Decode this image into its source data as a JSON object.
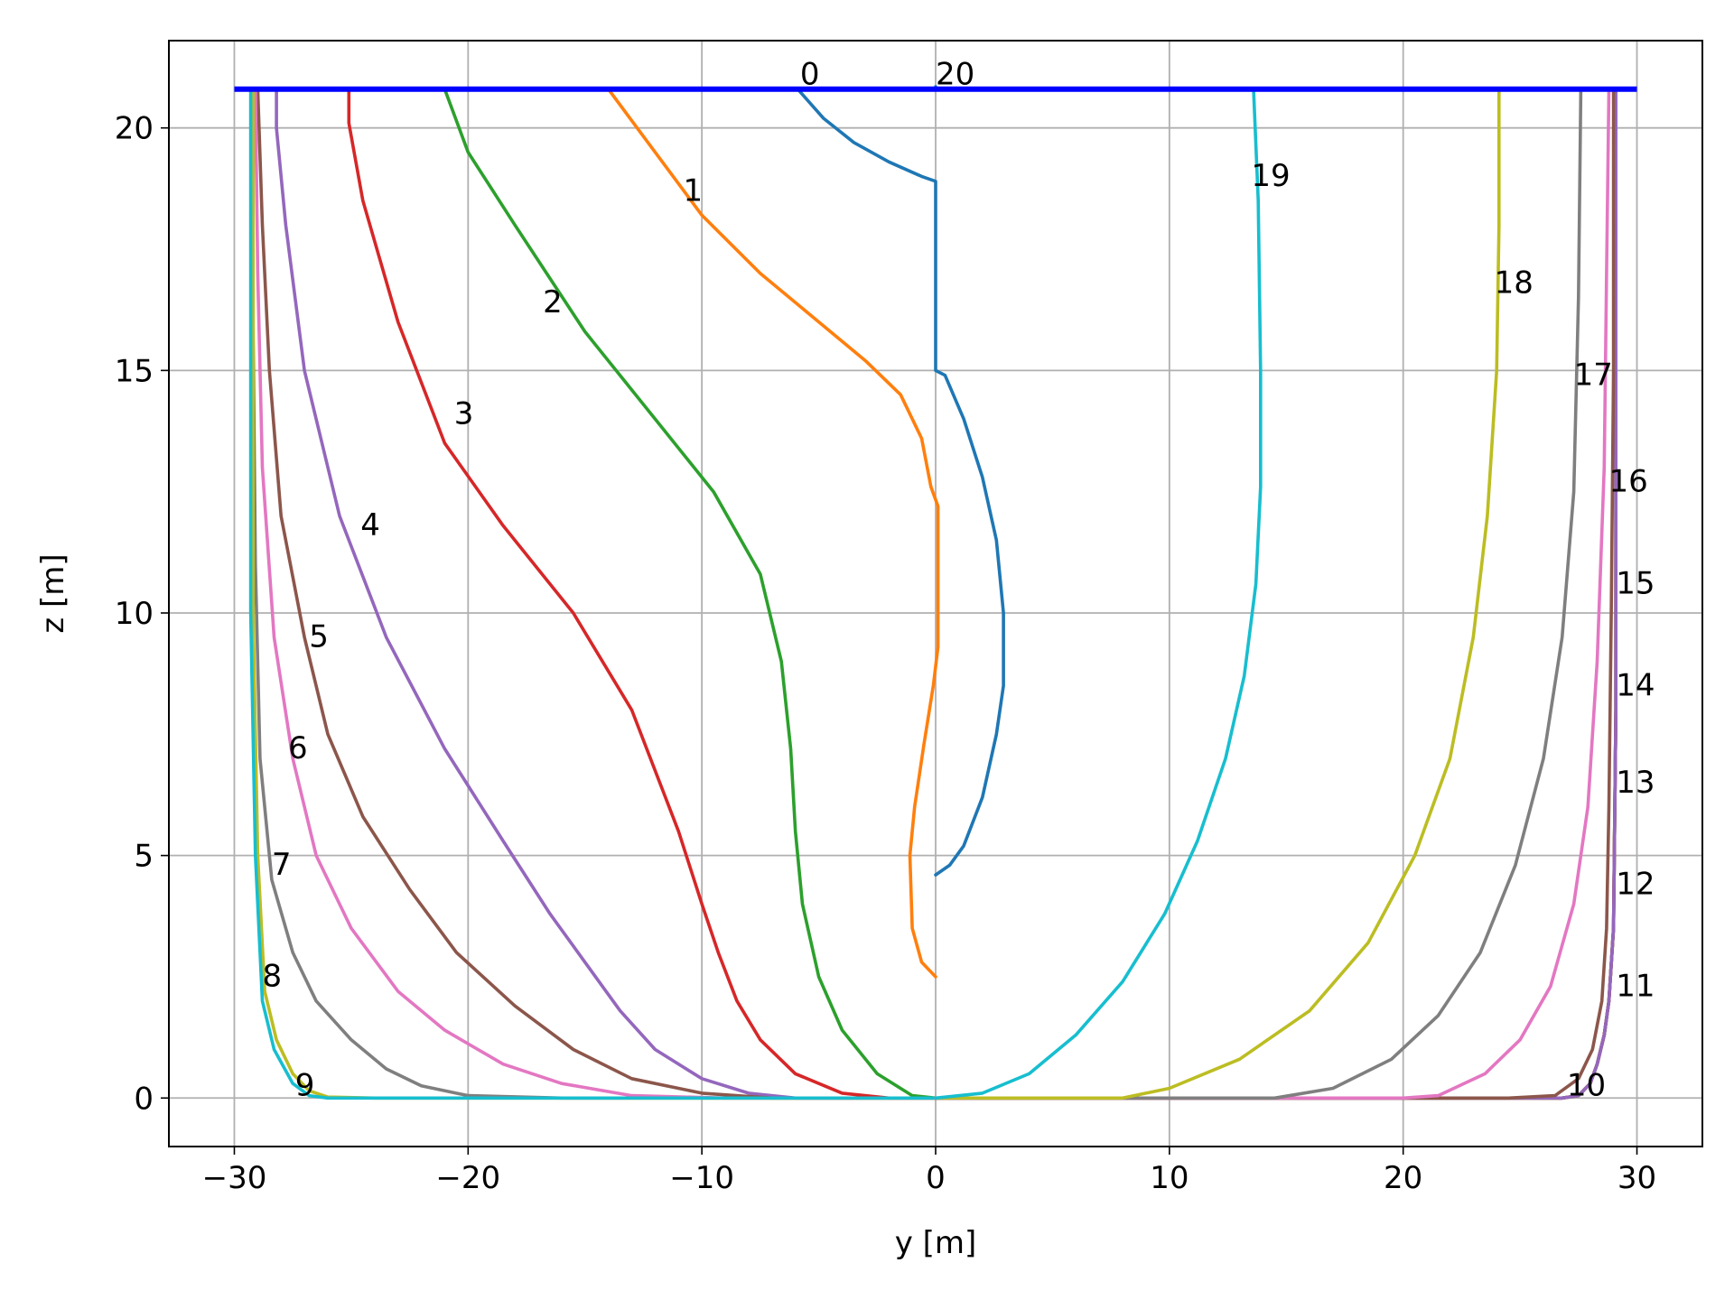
{
  "chart_data": {
    "type": "line",
    "title": "",
    "xlabel": "y [m]",
    "ylabel": "z [m]",
    "xlim": [
      -32.8,
      32.8
    ],
    "ylim": [
      -1.0,
      21.8
    ],
    "xticks": [
      -30,
      -20,
      -10,
      0,
      10,
      20,
      30
    ],
    "xtick_labels": [
      "−30",
      "−20",
      "−10",
      "0",
      "10",
      "20",
      "30"
    ],
    "yticks": [
      0,
      5,
      10,
      15,
      20
    ],
    "ytick_labels": [
      "0",
      "5",
      "10",
      "15",
      "20"
    ],
    "grid": true,
    "legend": "none",
    "surface": {
      "x": [
        -30,
        30
      ],
      "y": [
        20.8,
        20.8
      ],
      "color": "#0000ff"
    },
    "series": [
      {
        "label": "0",
        "color": "#1f77b4",
        "label_pos": [
          -5.8,
          20.9
        ],
        "x": [
          -5.9,
          -4.8,
          -3.5,
          -2.0,
          -0.6,
          0.0,
          0.0,
          0.0,
          0.4,
          1.2,
          2.0,
          2.6,
          2.9,
          2.9,
          2.6,
          2.0,
          1.2,
          0.6,
          0.0
        ],
        "y": [
          20.8,
          20.2,
          19.7,
          19.3,
          19.0,
          18.9,
          17.0,
          15.0,
          14.9,
          14.0,
          12.8,
          11.5,
          10.0,
          8.5,
          7.5,
          6.2,
          5.2,
          4.8,
          4.6
        ]
      },
      {
        "label": "1",
        "color": "#ff7f0e",
        "label_pos": [
          -10.8,
          18.5
        ],
        "x": [
          -14.0,
          -12.0,
          -10.0,
          -7.5,
          -5.0,
          -3.0,
          -1.5,
          -0.6,
          -0.2,
          0.1,
          0.1,
          0.1,
          -0.1,
          -0.5,
          -0.9,
          -1.1,
          -1.0,
          -0.6,
          0.0
        ],
        "y": [
          20.8,
          19.5,
          18.2,
          17.0,
          16.0,
          15.2,
          14.5,
          13.6,
          12.6,
          12.2,
          10.5,
          9.3,
          8.5,
          7.3,
          6.0,
          5.0,
          3.5,
          2.8,
          2.5
        ]
      },
      {
        "label": "2",
        "color": "#2ca02c",
        "label_pos": [
          -16.8,
          16.2
        ],
        "x": [
          -21.0,
          -20.0,
          -18.0,
          -15.0,
          -12.0,
          -9.5,
          -7.5,
          -6.6,
          -6.2,
          -6.0,
          -5.7,
          -5.0,
          -4.0,
          -2.5,
          -1.0,
          0.0
        ],
        "y": [
          20.8,
          19.5,
          18.0,
          15.8,
          14.0,
          12.5,
          10.8,
          9.0,
          7.2,
          5.5,
          4.0,
          2.5,
          1.4,
          0.5,
          0.05,
          0.0
        ]
      },
      {
        "label": "3",
        "color": "#d62728",
        "label_pos": [
          -20.6,
          13.9
        ],
        "x": [
          -25.1,
          -25.1,
          -24.5,
          -23.0,
          -21.0,
          -18.5,
          -15.5,
          -13.0,
          -11.0,
          -10.0,
          -9.3,
          -8.5,
          -7.5,
          -6.0,
          -4.0,
          -2.0,
          0.0
        ],
        "y": [
          20.8,
          20.1,
          18.5,
          16.0,
          13.5,
          11.8,
          10.0,
          8.0,
          5.5,
          4.0,
          3.0,
          2.0,
          1.2,
          0.5,
          0.1,
          0.0,
          0.0
        ]
      },
      {
        "label": "4",
        "color": "#9467bd",
        "label_pos": [
          -24.6,
          11.6
        ],
        "x": [
          -28.2,
          -28.2,
          -27.8,
          -27.0,
          -25.5,
          -23.5,
          -21.0,
          -18.5,
          -16.5,
          -15.0,
          -13.5,
          -12.0,
          -10.0,
          -8.0,
          -6.0,
          -3.0,
          0.0
        ],
        "y": [
          20.8,
          20.0,
          18.0,
          15.0,
          12.0,
          9.5,
          7.2,
          5.3,
          3.8,
          2.8,
          1.8,
          1.0,
          0.4,
          0.1,
          0.0,
          0.0,
          0.0
        ]
      },
      {
        "label": "5",
        "color": "#8c564b",
        "label_pos": [
          -26.8,
          9.3
        ],
        "x": [
          -29.0,
          -28.8,
          -28.5,
          -28.0,
          -27.0,
          -26.0,
          -24.5,
          -22.5,
          -20.5,
          -18.0,
          -15.5,
          -13.0,
          -10.0,
          -7.0,
          -3.0,
          0.0
        ],
        "y": [
          20.8,
          18.0,
          15.0,
          12.0,
          9.5,
          7.5,
          5.8,
          4.3,
          3.0,
          1.9,
          1.0,
          0.4,
          0.1,
          0.0,
          0.0,
          0.0
        ]
      },
      {
        "label": "6",
        "color": "#e377c2",
        "label_pos": [
          -27.7,
          7.0
        ],
        "x": [
          -29.1,
          -29.0,
          -28.8,
          -28.3,
          -27.5,
          -26.5,
          -25.0,
          -23.0,
          -21.0,
          -18.5,
          -16.0,
          -13.0,
          -9.0,
          -5.0,
          0.0
        ],
        "y": [
          20.8,
          17.0,
          13.0,
          9.5,
          7.0,
          5.0,
          3.5,
          2.2,
          1.4,
          0.7,
          0.3,
          0.05,
          0.0,
          0.0,
          0.0
        ]
      },
      {
        "label": "7",
        "color": "#7f7f7f",
        "label_pos": [
          -28.4,
          4.6
        ],
        "x": [
          -29.2,
          -29.2,
          -29.1,
          -28.9,
          -28.4,
          -27.5,
          -26.5,
          -25.0,
          -23.5,
          -22.0,
          -20.0,
          -16.0,
          -10.0,
          0.0
        ],
        "y": [
          20.8,
          16.0,
          11.0,
          7.0,
          4.5,
          3.0,
          2.0,
          1.2,
          0.6,
          0.25,
          0.05,
          0.0,
          0.0,
          0.0
        ]
      },
      {
        "label": "8",
        "color": "#bcbd22",
        "label_pos": [
          -28.8,
          2.3
        ],
        "x": [
          -29.2,
          -29.2,
          -29.2,
          -29.0,
          -28.7,
          -28.2,
          -27.5,
          -26.8,
          -26.0,
          -24.0,
          -20.0,
          -10.0,
          0.0
        ],
        "y": [
          20.8,
          16.0,
          10.0,
          5.0,
          2.2,
          1.2,
          0.5,
          0.15,
          0.02,
          0.0,
          0.0,
          0.0,
          0.0
        ]
      },
      {
        "label": "9",
        "color": "#17becf",
        "label_pos": [
          -27.4,
          0.05
        ],
        "x": [
          -29.3,
          -29.3,
          -29.3,
          -29.1,
          -28.8,
          -28.3,
          -27.5,
          -26.8,
          -26.0,
          -20.0,
          -10.0,
          0.0
        ],
        "y": [
          20.8,
          16.0,
          10.0,
          5.0,
          2.0,
          1.0,
          0.3,
          0.05,
          0.0,
          0.0,
          0.0,
          0.0
        ]
      },
      {
        "label": "10",
        "color": "#1f77b4",
        "label_pos": [
          27.0,
          0.05
        ],
        "x": [
          0.0,
          10.0,
          20.0,
          26.8,
          27.5,
          28.0,
          28.3,
          28.6,
          28.8,
          29.0,
          29.1,
          29.1,
          29.1
        ],
        "y": [
          0.0,
          0.0,
          0.0,
          0.0,
          0.05,
          0.3,
          0.7,
          1.3,
          2.0,
          3.5,
          8.0,
          14.0,
          20.8
        ]
      },
      {
        "label": "11",
        "color": "#ff7f0e",
        "label_pos": [
          29.1,
          2.1
        ],
        "x": [
          0.0,
          10.0,
          20.0,
          26.8,
          27.5,
          28.0,
          28.3,
          28.6,
          28.8,
          29.0,
          29.1,
          29.1,
          29.1
        ],
        "y": [
          0.0,
          0.0,
          0.0,
          0.0,
          0.05,
          0.3,
          0.7,
          1.3,
          2.0,
          3.5,
          8.0,
          14.0,
          20.8
        ]
      },
      {
        "label": "12",
        "color": "#2ca02c",
        "label_pos": [
          29.1,
          4.2
        ],
        "x": [
          0.0,
          10.0,
          20.0,
          26.8,
          27.5,
          28.0,
          28.3,
          28.6,
          28.8,
          29.0,
          29.1,
          29.1,
          29.1
        ],
        "y": [
          0.0,
          0.0,
          0.0,
          0.0,
          0.05,
          0.3,
          0.7,
          1.3,
          2.0,
          3.5,
          8.0,
          14.0,
          20.8
        ]
      },
      {
        "label": "13",
        "color": "#d62728",
        "label_pos": [
          29.1,
          6.3
        ],
        "x": [
          0.0,
          10.0,
          20.0,
          26.8,
          27.5,
          28.0,
          28.3,
          28.6,
          28.8,
          29.0,
          29.1,
          29.1,
          29.1
        ],
        "y": [
          0.0,
          0.0,
          0.0,
          0.0,
          0.05,
          0.3,
          0.7,
          1.3,
          2.0,
          3.5,
          8.0,
          14.0,
          20.8
        ]
      },
      {
        "label": "14",
        "color": "#9467bd",
        "label_pos": [
          29.1,
          8.3
        ],
        "x": [
          0.0,
          10.0,
          20.0,
          26.8,
          27.5,
          28.0,
          28.3,
          28.6,
          28.8,
          29.0,
          29.1,
          29.1,
          29.1
        ],
        "y": [
          0.0,
          0.0,
          0.0,
          0.0,
          0.05,
          0.3,
          0.7,
          1.3,
          2.0,
          3.5,
          8.0,
          14.0,
          20.8
        ]
      },
      {
        "label": "15",
        "color": "#8c564b",
        "label_pos": [
          29.1,
          10.4
        ],
        "x": [
          0.0,
          10.0,
          20.0,
          24.5,
          26.5,
          27.5,
          28.1,
          28.5,
          28.7,
          28.8,
          28.9,
          29.0,
          29.0
        ],
        "y": [
          0.0,
          0.0,
          0.0,
          0.0,
          0.05,
          0.4,
          1.0,
          2.0,
          3.5,
          6.0,
          10.0,
          15.0,
          20.8
        ]
      },
      {
        "label": "16",
        "color": "#e377c2",
        "label_pos": [
          28.8,
          12.5
        ],
        "x": [
          0.0,
          10.0,
          20.0,
          21.5,
          23.5,
          25.0,
          26.3,
          27.3,
          27.9,
          28.3,
          28.6,
          28.7,
          28.8
        ],
        "y": [
          0.0,
          0.0,
          0.0,
          0.05,
          0.5,
          1.2,
          2.3,
          4.0,
          6.0,
          9.0,
          13.0,
          17.0,
          20.8
        ]
      },
      {
        "label": "17",
        "color": "#7f7f7f",
        "label_pos": [
          27.3,
          14.7
        ],
        "x": [
          0.0,
          10.0,
          14.5,
          17.0,
          19.5,
          21.5,
          23.3,
          24.8,
          26.0,
          26.8,
          27.3,
          27.5,
          27.6
        ],
        "y": [
          0.0,
          0.0,
          0.0,
          0.2,
          0.8,
          1.7,
          3.0,
          4.8,
          7.0,
          9.5,
          12.5,
          16.5,
          20.8
        ]
      },
      {
        "label": "18",
        "color": "#bcbd22",
        "label_pos": [
          23.9,
          16.6
        ],
        "x": [
          0.0,
          8.0,
          10.0,
          13.0,
          16.0,
          18.5,
          20.5,
          22.0,
          23.0,
          23.6,
          24.0,
          24.1,
          24.1
        ],
        "y": [
          0.0,
          0.0,
          0.2,
          0.8,
          1.8,
          3.2,
          5.0,
          7.0,
          9.5,
          12.0,
          15.0,
          18.0,
          20.8
        ]
      },
      {
        "label": "19",
        "color": "#17becf",
        "label_pos": [
          13.5,
          18.8
        ],
        "x": [
          0.0,
          2.0,
          4.0,
          6.0,
          8.0,
          9.8,
          11.2,
          12.4,
          13.2,
          13.7,
          13.9,
          13.9,
          13.8,
          13.6
        ],
        "y": [
          0.0,
          0.1,
          0.5,
          1.3,
          2.4,
          3.8,
          5.3,
          7.0,
          8.7,
          10.6,
          12.6,
          15.0,
          18.5,
          20.8
        ]
      },
      {
        "label": "20",
        "color": "#1f77b4",
        "label_pos": [
          0.0,
          20.9
        ],
        "x": [
          0.0,
          0.0
        ],
        "y": [
          20.8,
          20.85
        ]
      }
    ]
  }
}
